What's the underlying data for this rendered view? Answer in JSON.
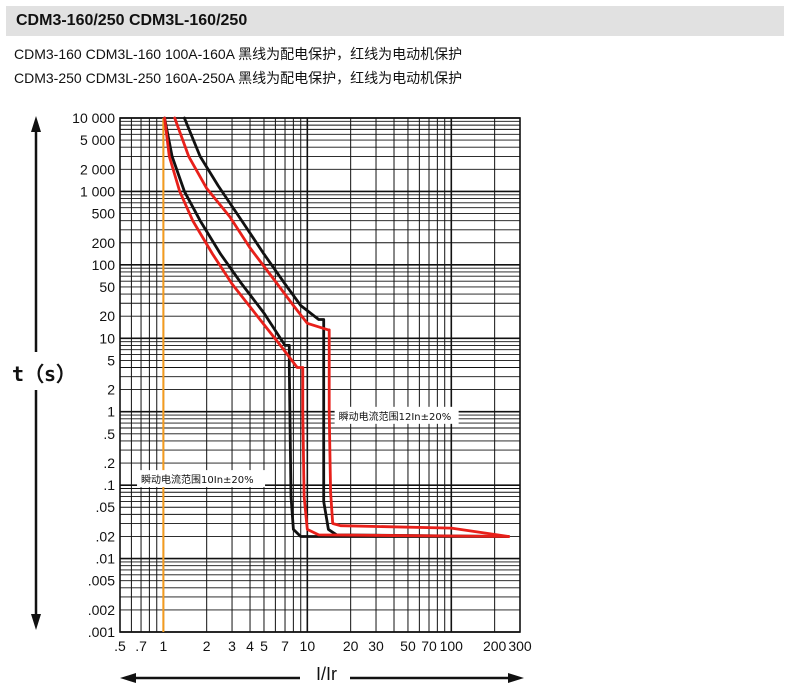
{
  "header": {
    "title": "CDM3-160/250  CDM3L-160/250",
    "line1": "CDM3-160 CDM3L-160 100A-160A 黑线为配电保护，红线为电动机保护",
    "line2": "CDM3-250 CDM3L-250 160A-250A 黑线为配电保护，红线为电动机保护"
  },
  "chart_data": {
    "type": "line",
    "xscale": "log",
    "yscale": "log",
    "xlim": [
      0.5,
      300
    ],
    "ylim": [
      0.001,
      10000
    ],
    "xlabel": "I/Ir",
    "ylabel": "t（s）",
    "x_ticks": [
      {
        "value": 0.5,
        "label": ".5"
      },
      {
        "value": 0.7,
        "label": ".7"
      },
      {
        "value": 1,
        "label": "1"
      },
      {
        "value": 2,
        "label": "2"
      },
      {
        "value": 3,
        "label": "3"
      },
      {
        "value": 4,
        "label": "4"
      },
      {
        "value": 5,
        "label": "5"
      },
      {
        "value": 7,
        "label": "7"
      },
      {
        "value": 10,
        "label": "10"
      },
      {
        "value": 20,
        "label": "20"
      },
      {
        "value": 30,
        "label": "30"
      },
      {
        "value": 50,
        "label": "50"
      },
      {
        "value": 70,
        "label": "70"
      },
      {
        "value": 100,
        "label": "100"
      },
      {
        "value": 200,
        "label": "200"
      },
      {
        "value": 300,
        "label": "300"
      }
    ],
    "y_ticks": [
      {
        "value": 10000,
        "label": "10 000"
      },
      {
        "value": 5000,
        "label": "5 000"
      },
      {
        "value": 2000,
        "label": "2 000"
      },
      {
        "value": 1000,
        "label": "1 000"
      },
      {
        "value": 500,
        "label": "500"
      },
      {
        "value": 200,
        "label": "200"
      },
      {
        "value": 100,
        "label": "100"
      },
      {
        "value": 50,
        "label": "50"
      },
      {
        "value": 20,
        "label": "20"
      },
      {
        "value": 10,
        "label": "10"
      },
      {
        "value": 5,
        "label": "5"
      },
      {
        "value": 2,
        "label": "2"
      },
      {
        "value": 1,
        "label": "1"
      },
      {
        "value": 0.5,
        "label": ".5"
      },
      {
        "value": 0.2,
        "label": ".2"
      },
      {
        "value": 0.1,
        "label": ".1"
      },
      {
        "value": 0.05,
        "label": ".05"
      },
      {
        "value": 0.02,
        "label": ".02"
      },
      {
        "value": 0.01,
        "label": ".01"
      },
      {
        "value": 0.005,
        "label": ".005"
      },
      {
        "value": 0.002,
        "label": ".002"
      },
      {
        "value": 0.001,
        "label": ".001"
      }
    ],
    "reference_line": {
      "x": 1.0,
      "color": "#f39b1f"
    },
    "series": [
      {
        "group": "distribution",
        "color": "#111111",
        "side": "left",
        "points": [
          [
            1.02,
            10000
          ],
          [
            1.15,
            3000
          ],
          [
            1.4,
            1000
          ],
          [
            1.8,
            400
          ],
          [
            2.5,
            140
          ],
          [
            3.5,
            55
          ],
          [
            5,
            22
          ],
          [
            7,
            8
          ],
          [
            7.5,
            8
          ],
          [
            7.5,
            4
          ],
          [
            7.7,
            0.07
          ],
          [
            8,
            0.025
          ],
          [
            9,
            0.02
          ],
          [
            150,
            0.02
          ],
          [
            250,
            0.02
          ]
        ]
      },
      {
        "group": "distribution",
        "color": "#111111",
        "side": "right",
        "points": [
          [
            1.4,
            10000
          ],
          [
            1.8,
            3000
          ],
          [
            2.4,
            1200
          ],
          [
            3.5,
            400
          ],
          [
            5,
            140
          ],
          [
            7,
            55
          ],
          [
            9,
            28
          ],
          [
            12,
            18
          ],
          [
            13,
            18
          ],
          [
            13,
            0.06
          ],
          [
            14,
            0.025
          ],
          [
            16,
            0.021
          ],
          [
            250,
            0.02
          ]
        ]
      },
      {
        "group": "motor",
        "color": "#e8201a",
        "side": "left",
        "points": [
          [
            1.02,
            10000
          ],
          [
            1.1,
            3000
          ],
          [
            1.3,
            1000
          ],
          [
            1.6,
            400
          ],
          [
            2.2,
            140
          ],
          [
            3,
            55
          ],
          [
            4.5,
            20
          ],
          [
            6.5,
            8
          ],
          [
            8.5,
            4
          ],
          [
            9.3,
            4
          ],
          [
            9.3,
            1
          ],
          [
            9.5,
            0.07
          ],
          [
            10,
            0.025
          ],
          [
            12,
            0.021
          ],
          [
            250,
            0.02
          ]
        ]
      },
      {
        "group": "motor",
        "color": "#e8201a",
        "side": "right",
        "points": [
          [
            1.2,
            10000
          ],
          [
            1.5,
            3000
          ],
          [
            2,
            1100
          ],
          [
            2.9,
            450
          ],
          [
            4,
            170
          ],
          [
            5.8,
            65
          ],
          [
            8,
            28
          ],
          [
            10,
            16
          ],
          [
            14,
            13
          ],
          [
            14.2,
            13
          ],
          [
            14.2,
            1
          ],
          [
            14.5,
            0.08
          ],
          [
            15,
            0.03
          ],
          [
            17,
            0.028
          ],
          [
            100,
            0.026
          ],
          [
            250,
            0.02
          ]
        ]
      }
    ],
    "annotations": [
      {
        "text": "瞬动电流范围12In±20%",
        "x": 16.5,
        "y": 0.8
      },
      {
        "text": "瞬动电流范围10In±20%",
        "x": 0.7,
        "y": 0.11
      }
    ]
  }
}
